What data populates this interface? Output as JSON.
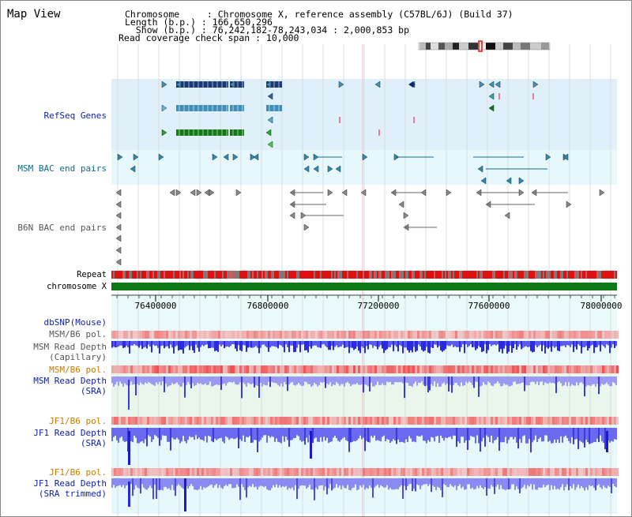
{
  "panel": {
    "title": "Map View"
  },
  "header": {
    "chromosome_line": "Chromosome     : Chromosome X, reference assembly (C57BL/6J) (Build 37)",
    "length_line": "Length (b.p.) : 166,650,296",
    "show_line": "  Show (b.p.) : 76,242,182-78,243,034 : 2,000,853 bp",
    "coverage_line": "Read coverage check span : 10,000"
  },
  "tracks": {
    "refseq": "RefSeq Genes",
    "msm_bac": "MSM BAC end pairs",
    "b6n_bac": "B6N BAC end pairs",
    "repeat": "Repeat",
    "chromosome": "chromosome X",
    "dbsnp": "dbSNP(Mouse)",
    "msm_b6_pol_1": "MSM/B6 pol.",
    "msm_depth_cap": "MSM Read Depth\n(Capillary)",
    "msm_b6_pol_2": "MSM/B6 pol.",
    "msm_depth_sra": "MSM Read Depth\n(SRA)",
    "jf1_b6_pol_1": "JF1/B6 pol.",
    "jf1_depth_sra": "JF1 Read Depth\n(SRA)",
    "jf1_b6_pol_2": "JF1/B6 pol.",
    "jf1_depth_trim": "JF1 Read Depth\n(SRA trimmed)"
  },
  "axis": {
    "ticks": [
      "76400000",
      "76800000",
      "77200000",
      "77600000",
      "78000000"
    ]
  },
  "colors": {
    "refseq_bg": "#dff0fb",
    "bac_bg": "#e6f8fb",
    "snp_bg": "#e8f6ec",
    "depth_bg": "#e6f8fb",
    "gene_dark": "#1a3a78",
    "gene_mid": "#3f8fb8",
    "gene_green": "#137a13",
    "repeat_red": "#e01010",
    "chrom_green": "#0d7a16",
    "depth_blue": "#4040e8",
    "depth_light": "#8a8af0"
  }
}
